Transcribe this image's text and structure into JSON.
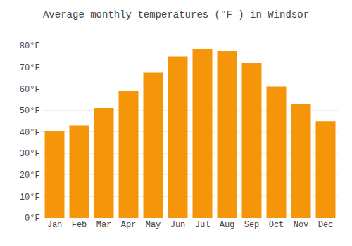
{
  "chart_data": {
    "type": "bar",
    "title": "Average monthly temperatures (°F ) in Windsor",
    "categories": [
      "Jan",
      "Feb",
      "Mar",
      "Apr",
      "May",
      "Jun",
      "Jul",
      "Aug",
      "Sep",
      "Oct",
      "Nov",
      "Dec"
    ],
    "values": [
      40.5,
      43.0,
      51.0,
      59.0,
      67.5,
      75.0,
      78.5,
      77.5,
      72.0,
      61.0,
      53.0,
      45.0
    ],
    "color": "#F5960A",
    "ylim": [
      0,
      85
    ],
    "yticks": [
      {
        "value": 0,
        "label": "0°F"
      },
      {
        "value": 10,
        "label": "10°F"
      },
      {
        "value": 20,
        "label": "20°F"
      },
      {
        "value": 30,
        "label": "30°F"
      },
      {
        "value": 40,
        "label": "40°F"
      },
      {
        "value": 50,
        "label": "50°F"
      },
      {
        "value": 60,
        "label": "60°F"
      },
      {
        "value": 70,
        "label": "70°F"
      },
      {
        "value": 80,
        "label": "80°F"
      }
    ],
    "grid": true
  }
}
